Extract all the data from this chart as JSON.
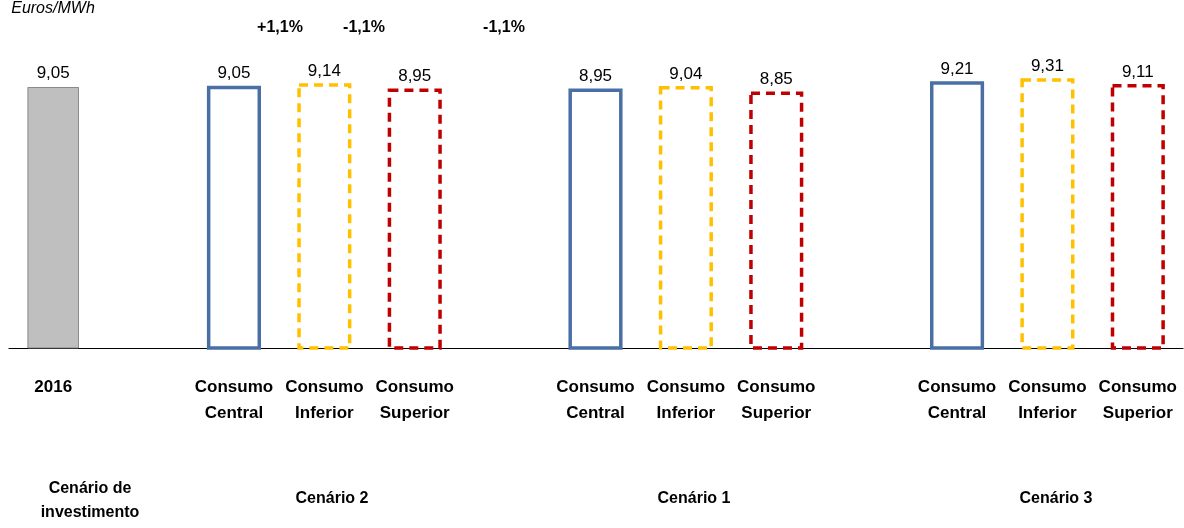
{
  "chart_data": {
    "type": "bar",
    "ylabel": "Euros/MWh",
    "categories": [
      "2016",
      null,
      "Consumo Central",
      "Consumo Inferior",
      "Consumo Superior",
      null,
      "Consumo Central",
      "Consumo Inferior",
      "Consumo Superior",
      null,
      "Consumo Central",
      "Consumo Inferior",
      "Consumo Superior"
    ],
    "series": [
      {
        "color": "#bfbfbf",
        "values": [
          9.05,
          null,
          null,
          null,
          null,
          null,
          null,
          null,
          null,
          null,
          null,
          null,
          null
        ],
        "value_labels": [
          "9,05",
          null,
          null,
          null,
          null,
          null,
          null,
          null,
          null,
          null,
          null,
          null,
          null
        ]
      },
      {
        "color": "#4a6fa5",
        "line_style": "solid",
        "values": [
          null,
          null,
          9.05,
          null,
          null,
          null,
          8.95,
          null,
          null,
          null,
          9.21,
          null,
          null
        ],
        "value_labels": [
          null,
          null,
          "9,05",
          null,
          null,
          null,
          "8,95",
          null,
          null,
          null,
          "9,21",
          null,
          null
        ]
      },
      {
        "color": "#ffc000",
        "line_style": "dashed",
        "values": [
          null,
          null,
          null,
          9.14,
          null,
          null,
          null,
          9.04,
          null,
          null,
          null,
          9.31,
          null
        ],
        "value_labels": [
          null,
          null,
          null,
          "9,14",
          null,
          null,
          null,
          "9,04",
          null,
          null,
          null,
          "9,31",
          null
        ]
      },
      {
        "color": "#c00000",
        "line_style": "dashed",
        "values": [
          null,
          null,
          null,
          null,
          8.95,
          null,
          null,
          null,
          8.85,
          null,
          null,
          null,
          9.11
        ],
        "value_labels": [
          null,
          null,
          null,
          null,
          "8,95",
          null,
          null,
          null,
          "8,85",
          null,
          null,
          null,
          "9,11"
        ]
      }
    ],
    "annotations": [
      "+1,1%",
      "-1,1%",
      "-1,1%",
      "Cenário de investimento",
      "Cenário 2",
      "Cenário 1",
      "Cenário 3"
    ]
  }
}
